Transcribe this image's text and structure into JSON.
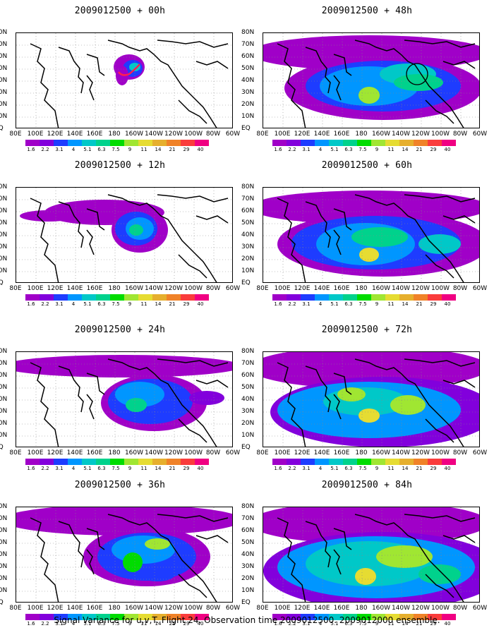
{
  "panels": [
    {
      "title": "2009012500 + 00h",
      "stage": 0,
      "annotation": "red-track"
    },
    {
      "title": "2009012500 + 48h",
      "stage": 4,
      "annotation": "circle"
    },
    {
      "title": "2009012500 + 12h",
      "stage": 1
    },
    {
      "title": "2009012500 + 60h",
      "stage": 5
    },
    {
      "title": "2009012500 + 24h",
      "stage": 2
    },
    {
      "title": "2009012500 + 72h",
      "stage": 6
    },
    {
      "title": "2009012500 + 36h",
      "stage": 3
    },
    {
      "title": "2009012500 + 84h",
      "stage": 7
    }
  ],
  "lat_labels": [
    "80N",
    "70N",
    "60N",
    "50N",
    "40N",
    "30N",
    "20N",
    "10N",
    "EQ"
  ],
  "lon_labels": [
    "80E",
    "100E",
    "120E",
    "140E",
    "160E",
    "180",
    "160W",
    "140W",
    "120W",
    "100W",
    "80W",
    "60W"
  ],
  "colorbar": {
    "labels": [
      "1.6",
      "2.2",
      "3.1",
      "4",
      "5.1",
      "6.3",
      "7.5",
      "9",
      "11",
      "14",
      "21",
      "29",
      "40"
    ],
    "colors": [
      "#a000c8",
      "#8200dc",
      "#1e3cff",
      "#0096ff",
      "#00c8c8",
      "#00d28c",
      "#00dc00",
      "#a0e632",
      "#e6dc32",
      "#e6af2d",
      "#f08228",
      "#fa3c3c",
      "#f00082"
    ]
  },
  "caption": "Signal Variance for u,v,T. Flight 24. Observation time 2009012500. 2009012000 ensemble."
}
